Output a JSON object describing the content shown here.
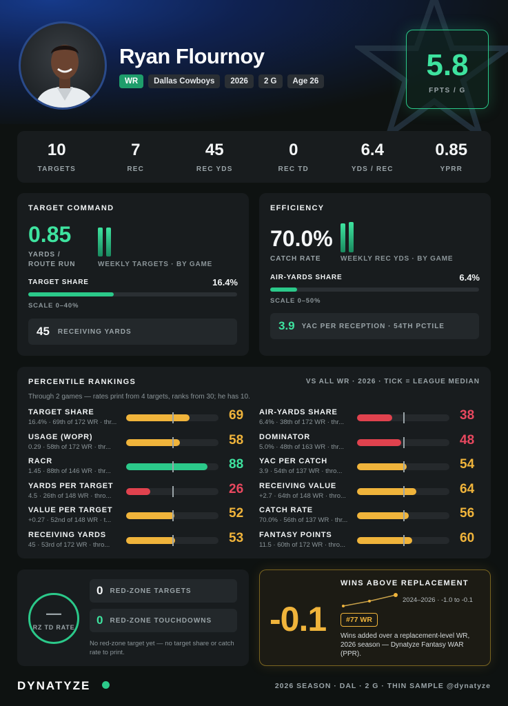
{
  "player": {
    "name": "Ryan Flournoy",
    "position": "WR",
    "team": "Dallas Cowboys",
    "season": "2026",
    "games": "2 G",
    "age": "Age 26",
    "fpts_value": "5.8",
    "fpts_label": "FPTS / G"
  },
  "stats": [
    {
      "value": "10",
      "label": "TARGETS"
    },
    {
      "value": "7",
      "label": "REC"
    },
    {
      "value": "45",
      "label": "REC YDS"
    },
    {
      "value": "0",
      "label": "REC TD"
    },
    {
      "value": "6.4",
      "label": "YDS / REC"
    },
    {
      "value": "0.85",
      "label": "YPRR"
    }
  ],
  "target_command": {
    "title": "TARGET COMMAND",
    "big_value": "0.85",
    "big_label_1": "YARDS /",
    "big_label_2": "ROUTE RUN",
    "chart_label": "WEEKLY TARGETS · BY GAME",
    "weekly_values": [
      5,
      5
    ],
    "share_label": "TARGET SHARE",
    "share_value": "16.4%",
    "share_fraction": 0.41,
    "scale_label": "SCALE 0–40%",
    "chip_value": "45",
    "chip_label": "RECEIVING YARDS"
  },
  "efficiency": {
    "title": "EFFICIENCY",
    "big_value": "70.0%",
    "big_label": "CATCH RATE",
    "chart_label": "WEEKLY REC YDS · BY GAME",
    "weekly_values": [
      22,
      23
    ],
    "share_label": "AIR-YARDS SHARE",
    "share_value": "6.4%",
    "share_fraction": 0.128,
    "scale_label": "SCALE 0–50%",
    "chip_value": "3.9",
    "chip_label": "YAC PER RECEPTION · 54TH PCTILE"
  },
  "percentiles": {
    "title": "PERCENTILE RANKINGS",
    "subtitle": "VS ALL WR · 2026 · TICK = LEAGUE MEDIAN",
    "note": "Through 2 games — rates print from 4 targets, ranks from 30; he has 10.",
    "left": [
      {
        "name": "TARGET SHARE",
        "sub": "16.4% · 69th of 172 WR · thr...",
        "value": "69",
        "pct": 69,
        "color": "#f0b43b",
        "tone": "orange"
      },
      {
        "name": "USAGE (WOPR)",
        "sub": "0.29 · 58th of 172 WR · thr...",
        "value": "58",
        "pct": 58,
        "color": "#f0b43b",
        "tone": "orange"
      },
      {
        "name": "RACR",
        "sub": "1.45 · 88th of 146 WR · thr...",
        "value": "88",
        "pct": 88,
        "color": "#2bc98a",
        "tone": "green"
      },
      {
        "name": "YARDS PER TARGET",
        "sub": "4.5 · 26th of 148 WR · thro...",
        "value": "26",
        "pct": 26,
        "color": "#e0424e",
        "tone": "red"
      },
      {
        "name": "VALUE PER TARGET",
        "sub": "+0.27 · 52nd of 148 WR · t...",
        "value": "52",
        "pct": 52,
        "color": "#f0b43b",
        "tone": "orange"
      },
      {
        "name": "RECEIVING YARDS",
        "sub": "45 · 53rd of 172 WR · thro...",
        "value": "53",
        "pct": 53,
        "color": "#f0b43b",
        "tone": "orange"
      }
    ],
    "right": [
      {
        "name": "AIR-YARDS SHARE",
        "sub": "6.4% · 38th of 172 WR · thr...",
        "value": "38",
        "pct": 38,
        "color": "#e0424e",
        "tone": "red"
      },
      {
        "name": "DOMINATOR",
        "sub": "5.0% · 48th of 163 WR · thr...",
        "value": "48",
        "pct": 48,
        "color": "#e0424e",
        "tone": "red"
      },
      {
        "name": "YAC PER CATCH",
        "sub": "3.9 · 54th of 137 WR · thro...",
        "value": "54",
        "pct": 54,
        "color": "#f0b43b",
        "tone": "orange"
      },
      {
        "name": "RECEIVING VALUE",
        "sub": "+2.7 · 64th of 148 WR · thro...",
        "value": "64",
        "pct": 64,
        "color": "#f0b43b",
        "tone": "orange"
      },
      {
        "name": "CATCH RATE",
        "sub": "70.0% · 56th of 137 WR · thr...",
        "value": "56",
        "pct": 56,
        "color": "#f0b43b",
        "tone": "orange"
      },
      {
        "name": "FANTASY POINTS",
        "sub": "11.5 · 60th of 172 WR · thro...",
        "value": "60",
        "pct": 60,
        "color": "#f0b43b",
        "tone": "orange"
      }
    ]
  },
  "redzone": {
    "ring_value": "—",
    "ring_label": "RZ TD RATE",
    "targets_value": "0",
    "targets_label": "RED-ZONE TARGETS",
    "tds_value": "0",
    "tds_label": "RED-ZONE TOUCHDOWNS",
    "note": "No red-zone target yet — no target share or catch rate to print."
  },
  "war": {
    "title": "WINS ABOVE REPLACEMENT",
    "value": "-0.1",
    "trend_label": "2024–2026 · -1.0 to -0.1",
    "rank_badge": "#77 WR",
    "description": "Wins added over a replacement-level WR, 2026 season — Dynatyze Fantasy WAR (PPR).",
    "trend_values": [
      -1.0,
      -0.6,
      -0.1
    ]
  },
  "footer": {
    "logo": "DYNATYZE",
    "right": "2026 SEASON · DAL · 2 G · THIN SAMPLE   @dynatyze"
  }
}
